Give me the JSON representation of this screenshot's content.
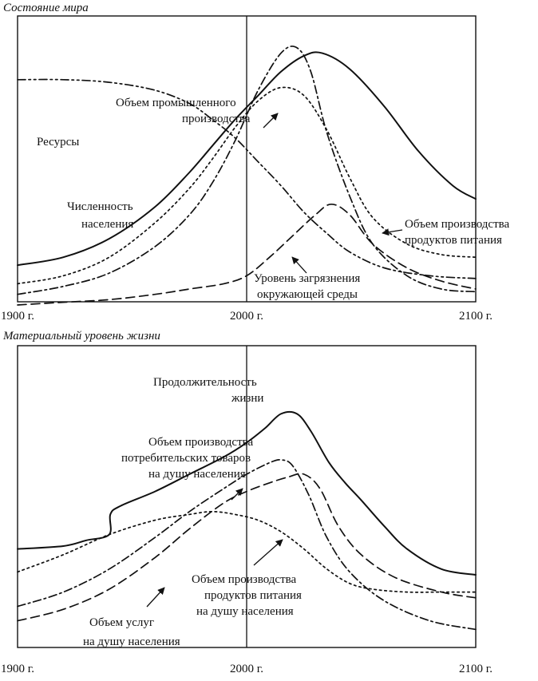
{
  "panels": [
    {
      "title": "Состояние мира"
    },
    {
      "title": "Материальный уровень жизни"
    }
  ],
  "chart_data": [
    {
      "type": "line",
      "title": "Состояние мира",
      "xlim": [
        1900,
        2100
      ],
      "x_tick_labels": [
        "1900 г.",
        "2000 г.",
        "2100 г."
      ],
      "y_scale": "relative (no numeric axis printed)",
      "ylim": [
        0,
        100
      ],
      "grid": false,
      "series": [
        {
          "name": "Ресурсы",
          "style": "dash-dot-dot",
          "points": [
            [
              1900,
              82
            ],
            [
              1920,
              82
            ],
            [
              1940,
              81
            ],
            [
              1960,
              78
            ],
            [
              1975,
              73
            ],
            [
              1985,
              67
            ],
            [
              1995,
              60
            ],
            [
              2005,
              51
            ],
            [
              2015,
              42
            ],
            [
              2025,
              32
            ],
            [
              2035,
              24
            ],
            [
              2045,
              17
            ],
            [
              2060,
              11
            ],
            [
              2080,
              8
            ],
            [
              2100,
              7
            ]
          ]
        },
        {
          "name": "Численность населения",
          "style": "solid",
          "points": [
            [
              1900,
              12
            ],
            [
              1920,
              15
            ],
            [
              1940,
              22
            ],
            [
              1960,
              34
            ],
            [
              1975,
              47
            ],
            [
              1985,
              57
            ],
            [
              1995,
              67
            ],
            [
              2005,
              76
            ],
            [
              2015,
              85
            ],
            [
              2025,
              91
            ],
            [
              2033,
              92
            ],
            [
              2045,
              86
            ],
            [
              2060,
              72
            ],
            [
              2075,
              55
            ],
            [
              2090,
              42
            ],
            [
              2100,
              37
            ]
          ]
        },
        {
          "name": "Объем промышленного производства",
          "style": "dash-dot",
          "points": [
            [
              1900,
              1
            ],
            [
              1920,
              4
            ],
            [
              1940,
              9
            ],
            [
              1960,
              19
            ],
            [
              1975,
              31
            ],
            [
              1985,
              43
            ],
            [
              1995,
              59
            ],
            [
              2005,
              78
            ],
            [
              2015,
              92
            ],
            [
              2022,
              94
            ],
            [
              2028,
              85
            ],
            [
              2035,
              62
            ],
            [
              2045,
              38
            ],
            [
              2055,
              20
            ],
            [
              2070,
              8
            ],
            [
              2085,
              3
            ],
            [
              2100,
              2
            ]
          ]
        },
        {
          "name": "Объем производства продуктов питания",
          "style": "dotted",
          "points": [
            [
              1900,
              5
            ],
            [
              1920,
              8
            ],
            [
              1940,
              15
            ],
            [
              1960,
              28
            ],
            [
              1975,
              41
            ],
            [
              1985,
              52
            ],
            [
              1995,
              64
            ],
            [
              2005,
              74
            ],
            [
              2015,
              79
            ],
            [
              2025,
              76
            ],
            [
              2035,
              63
            ],
            [
              2045,
              45
            ],
            [
              2055,
              30
            ],
            [
              2070,
              20
            ],
            [
              2085,
              16
            ],
            [
              2100,
              15
            ]
          ]
        },
        {
          "name": "Уровень загрязнения окружающей среды",
          "style": "dashed",
          "points": [
            [
              1900,
              -3
            ],
            [
              1920,
              -2
            ],
            [
              1940,
              -1
            ],
            [
              1960,
              1
            ],
            [
              1975,
              3
            ],
            [
              1990,
              5
            ],
            [
              2000,
              8
            ],
            [
              2010,
              15
            ],
            [
              2020,
              23
            ],
            [
              2030,
              31
            ],
            [
              2037,
              35
            ],
            [
              2045,
              31
            ],
            [
              2055,
              20
            ],
            [
              2070,
              11
            ],
            [
              2085,
              6
            ],
            [
              2100,
              3
            ]
          ]
        }
      ],
      "annotations": [
        {
          "text": [
            "Ресурсы"
          ],
          "points_to": "Ресурсы"
        },
        {
          "text": [
            "Численность",
            "населения"
          ],
          "points_to": "Численность населения"
        },
        {
          "text": [
            "Объем промышленного",
            "производства"
          ],
          "points_to": "Объем промышленного производства"
        },
        {
          "text": [
            "Объем производства",
            "продуктов питания"
          ],
          "points_to": "Объем производства продуктов питания"
        },
        {
          "text": [
            "Уровень загрязнения",
            "окружающей среды"
          ],
          "points_to": "Уровень загрязнения окружающей среды"
        }
      ]
    },
    {
      "type": "line",
      "title": "Материальный уровень жизни",
      "xlim": [
        1900,
        2100
      ],
      "x_tick_labels": [
        "1900 г.",
        "2000 г.",
        "2100 г."
      ],
      "y_scale": "relative (no numeric axis printed)",
      "ylim": [
        0,
        100
      ],
      "grid": false,
      "series": [
        {
          "name": "Продолжительность жизни",
          "style": "solid",
          "points": [
            [
              1900,
              34
            ],
            [
              1920,
              35
            ],
            [
              1930,
              37
            ],
            [
              1940,
              39
            ],
            [
              1940.5,
              46
            ],
            [
              1945,
              49
            ],
            [
              1960,
              54
            ],
            [
              1975,
              60
            ],
            [
              1990,
              66
            ],
            [
              2000,
              71
            ],
            [
              2008,
              76
            ],
            [
              2015,
              81
            ],
            [
              2022,
              81
            ],
            [
              2028,
              75
            ],
            [
              2036,
              64
            ],
            [
              2043,
              57
            ],
            [
              2050,
              51
            ],
            [
              2060,
              42
            ],
            [
              2070,
              34
            ],
            [
              2085,
              27
            ],
            [
              2100,
              25
            ]
          ]
        },
        {
          "name": "Объем производства потребительских товаров на душу населения",
          "style": "dash-dot",
          "points": [
            [
              1900,
              14
            ],
            [
              1920,
              19
            ],
            [
              1940,
              27
            ],
            [
              1960,
              38
            ],
            [
              1975,
              47
            ],
            [
              1990,
              55
            ],
            [
              2000,
              60
            ],
            [
              2010,
              64
            ],
            [
              2015,
              65
            ],
            [
              2020,
              63
            ],
            [
              2027,
              53
            ],
            [
              2035,
              38
            ],
            [
              2045,
              26
            ],
            [
              2060,
              16
            ],
            [
              2080,
              9
            ],
            [
              2100,
              6
            ]
          ]
        },
        {
          "name": "Объем производства продуктов питания на душу населения",
          "style": "dotted",
          "points": [
            [
              1900,
              26
            ],
            [
              1920,
              32
            ],
            [
              1940,
              39
            ],
            [
              1960,
              44
            ],
            [
              1975,
              46
            ],
            [
              1985,
              47
            ],
            [
              1995,
              46
            ],
            [
              2005,
              44
            ],
            [
              2015,
              40
            ],
            [
              2025,
              34
            ],
            [
              2035,
              27
            ],
            [
              2045,
              22
            ],
            [
              2055,
              20
            ],
            [
              2070,
              19
            ],
            [
              2085,
              19
            ],
            [
              2100,
              19
            ]
          ]
        },
        {
          "name": "Объем услуг на душу населения",
          "style": "dashed",
          "points": [
            [
              1900,
              9
            ],
            [
              1920,
              13
            ],
            [
              1940,
              20
            ],
            [
              1960,
              31
            ],
            [
              1975,
              41
            ],
            [
              1990,
              50
            ],
            [
              2000,
              54
            ],
            [
              2010,
              57
            ],
            [
              2018,
              59
            ],
            [
              2025,
              60
            ],
            [
              2032,
              55
            ],
            [
              2040,
              42
            ],
            [
              2050,
              32
            ],
            [
              2065,
              24
            ],
            [
              2085,
              19
            ],
            [
              2100,
              17
            ]
          ]
        }
      ],
      "annotations": [
        {
          "text": [
            "Продолжительность",
            "жизни"
          ],
          "points_to": "Продолжительность жизни"
        },
        {
          "text": [
            "Объем производства",
            "потребительских товаров",
            "на душу населения"
          ],
          "points_to": "Объем производства потребительских товаров на душу населения"
        },
        {
          "text": [
            "Объем производства",
            "продуктов питания",
            "на душу населения"
          ],
          "points_to": "Объем производства продуктов питания на душу населения"
        },
        {
          "text": [
            "Объем услуг",
            "на душу населения"
          ],
          "points_to": "Объем услуг на душу населения"
        }
      ]
    }
  ]
}
